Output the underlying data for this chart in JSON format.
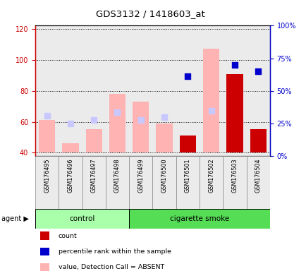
{
  "title": "GDS3132 / 1418603_at",
  "samples": [
    "GSM176495",
    "GSM176496",
    "GSM176497",
    "GSM176498",
    "GSM176499",
    "GSM176500",
    "GSM176501",
    "GSM176502",
    "GSM176503",
    "GSM176504"
  ],
  "ylim_left": [
    38,
    122
  ],
  "ylim_right": [
    0,
    100
  ],
  "yticks_left": [
    40,
    60,
    80,
    100,
    120
  ],
  "yticks_right": [
    0,
    25,
    50,
    75,
    100
  ],
  "ytick_labels_right": [
    "0%",
    "25%",
    "50%",
    "75%",
    "100%"
  ],
  "value_absent": [
    61,
    46,
    55,
    78,
    73,
    59,
    null,
    107,
    null,
    null
  ],
  "rank_absent": [
    64,
    59,
    61,
    66,
    61,
    63,
    null,
    67,
    null,
    null
  ],
  "count": [
    null,
    null,
    null,
    null,
    null,
    null,
    51,
    null,
    91,
    55
  ],
  "percentile_rank": [
    null,
    null,
    null,
    null,
    null,
    null,
    61,
    null,
    70,
    65
  ],
  "colors": {
    "value_absent": "#ffb3b3",
    "rank_absent": "#c8c8ff",
    "count": "#cc0000",
    "percentile_rank": "#0000cc",
    "control_bg": "#aaffaa",
    "cig_bg": "#55dd55",
    "plot_bg": "#ebebeb",
    "axis_left_color": "#cc0000",
    "axis_right_color": "#0000cc"
  },
  "bar_width": 0.7,
  "dot_size": 28,
  "base": 40
}
